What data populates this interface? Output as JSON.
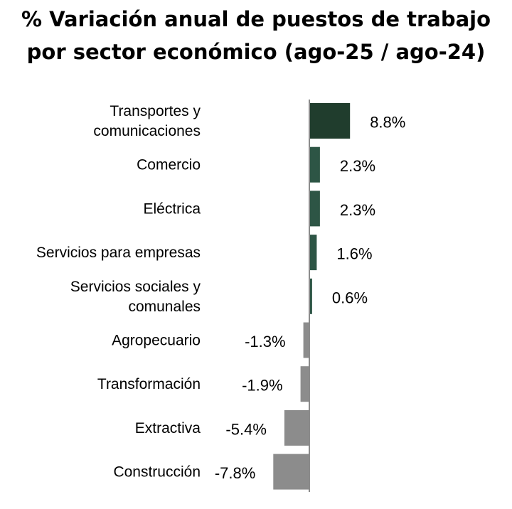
{
  "chart_data": {
    "type": "bar",
    "orientation": "horizontal",
    "title_lines": [
      "% Variación anual de puestos de trabajo",
      "por sector económico (ago-25 / ago-24)"
    ],
    "categories": [
      [
        "Transportes y",
        "comunicaciones"
      ],
      [
        "Comercio"
      ],
      [
        "Eléctrica"
      ],
      [
        "Servicios para empresas"
      ],
      [
        "Servicios sociales y",
        "comunales"
      ],
      [
        "Agropecuario"
      ],
      [
        "Transformación"
      ],
      [
        "Extractiva"
      ],
      [
        "Construcción"
      ]
    ],
    "values": [
      8.8,
      2.3,
      2.3,
      1.6,
      0.6,
      -1.3,
      -1.9,
      -5.4,
      -7.8
    ],
    "value_labels": [
      "8.8%",
      "2.3%",
      "2.3%",
      "1.6%",
      "0.6%",
      "-1.3%",
      "-1.9%",
      "-5.4%",
      "-7.8%"
    ],
    "colors": {
      "top": "#203d2d",
      "positive": "#2d5545",
      "negative": "#8c8c8c",
      "axis": "#8c8c8c"
    },
    "grid": false,
    "legend": "none"
  }
}
